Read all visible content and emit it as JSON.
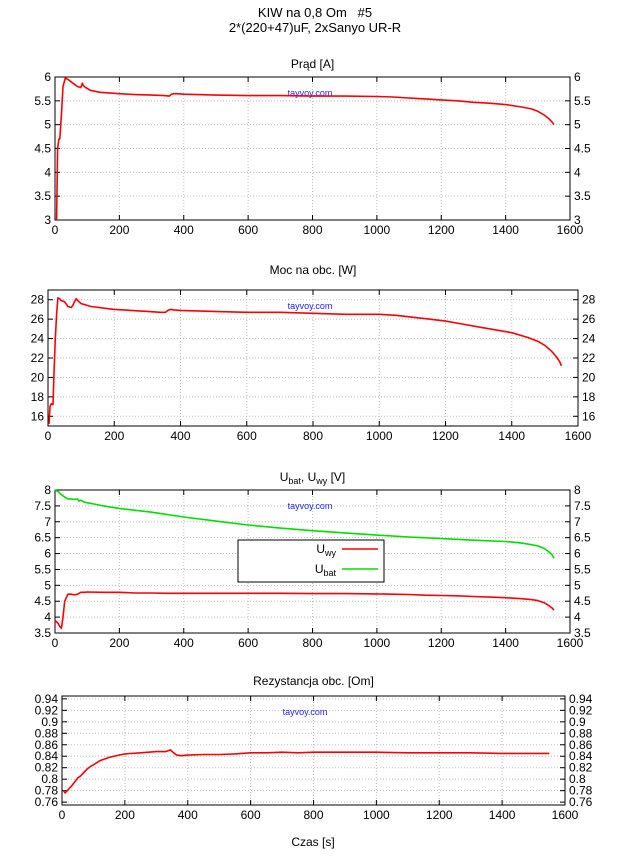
{
  "title": {
    "line1": "KIW na 0,8 Om   #5",
    "line2": "2*(220+47)uF, 2xSanyo UR-R"
  },
  "watermark": "tayvoy.com",
  "xlabel": "Czas [s]",
  "colors": {
    "red": "#ff0000",
    "green": "#00e000",
    "grid": "#bdbdbd"
  },
  "chart_data": [
    {
      "type": "line",
      "title": "Prąd [A]",
      "xlim": [
        0,
        1600
      ],
      "ylim": [
        3,
        6
      ],
      "xticks": [
        "0",
        "200",
        "400",
        "600",
        "800",
        "1000",
        "1200",
        "1400",
        "1600"
      ],
      "yticks": [
        "3",
        "3.5",
        "4",
        "4.5",
        "5",
        "5.5",
        "6"
      ],
      "series": [
        {
          "name": "Prąd",
          "color": "#ff0000",
          "x": [
            5,
            8,
            12,
            15,
            20,
            25,
            32,
            40,
            50,
            60,
            70,
            80,
            85,
            88,
            95,
            110,
            140,
            200,
            250,
            300,
            340,
            355,
            362,
            370,
            380,
            400,
            500,
            600,
            700,
            800,
            900,
            1000,
            1050,
            1100,
            1150,
            1200,
            1250,
            1300,
            1350,
            1400,
            1450,
            1480,
            1500,
            1520,
            1535,
            1545,
            1550
          ],
          "y": [
            3.0,
            4.5,
            4.7,
            4.7,
            5.2,
            5.8,
            5.98,
            5.95,
            5.9,
            5.85,
            5.8,
            5.78,
            5.87,
            5.82,
            5.78,
            5.72,
            5.68,
            5.65,
            5.63,
            5.62,
            5.61,
            5.6,
            5.64,
            5.65,
            5.65,
            5.64,
            5.62,
            5.61,
            5.61,
            5.6,
            5.6,
            5.59,
            5.58,
            5.56,
            5.54,
            5.52,
            5.5,
            5.47,
            5.45,
            5.42,
            5.37,
            5.33,
            5.28,
            5.2,
            5.12,
            5.05,
            5.0
          ]
        }
      ]
    },
    {
      "type": "line",
      "title": "Moc na obc. [W]",
      "xlim": [
        0,
        1600
      ],
      "ylim": [
        15,
        29
      ],
      "xticks": [
        "0",
        "200",
        "400",
        "600",
        "800",
        "1000",
        "1200",
        "1400",
        "1600"
      ],
      "yticks": [
        "16",
        "18",
        "20",
        "22",
        "24",
        "26",
        "28"
      ],
      "series": [
        {
          "name": "Moc",
          "color": "#ff0000",
          "x": [
            3,
            6,
            10,
            15,
            18,
            22,
            26,
            30,
            35,
            40,
            50,
            60,
            70,
            75,
            80,
            85,
            90,
            100,
            130,
            200,
            250,
            300,
            340,
            355,
            362,
            370,
            380,
            400,
            500,
            600,
            700,
            800,
            900,
            1000,
            1050,
            1100,
            1150,
            1200,
            1250,
            1300,
            1350,
            1400,
            1450,
            1480,
            1500,
            1520,
            1535,
            1545,
            1550
          ],
          "y": [
            15.2,
            17.0,
            17.3,
            17.2,
            20.5,
            24.0,
            26.5,
            28.2,
            28.1,
            27.9,
            27.8,
            27.3,
            27.2,
            27.4,
            27.8,
            28.1,
            27.9,
            27.6,
            27.3,
            27.0,
            26.9,
            26.8,
            26.7,
            26.7,
            26.9,
            27.0,
            26.95,
            26.9,
            26.8,
            26.7,
            26.7,
            26.6,
            26.5,
            26.5,
            26.4,
            26.2,
            26.0,
            25.8,
            25.5,
            25.2,
            24.9,
            24.6,
            24.1,
            23.7,
            23.3,
            22.7,
            22.1,
            21.6,
            21.2
          ]
        }
      ]
    },
    {
      "type": "line",
      "title_main": "U",
      "title_sub1": "bat",
      "title_sep": ", U",
      "title_sub2": "wy",
      "title_tail": " [V]",
      "xlim": [
        0,
        1600
      ],
      "ylim": [
        3.5,
        8
      ],
      "xticks": [
        "0",
        "200",
        "400",
        "600",
        "800",
        "1000",
        "1200",
        "1400",
        "1600"
      ],
      "yticks": [
        "3.5",
        "4",
        "4.5",
        "5",
        "5.5",
        "6",
        "6.5",
        "7",
        "7.5",
        "8"
      ],
      "legend": [
        {
          "main": "U",
          "sub": "wy",
          "color": "#ff0000"
        },
        {
          "main": "U",
          "sub": "bat",
          "color": "#00e000"
        }
      ],
      "series": [
        {
          "name": "Uwy",
          "color": "#ff0000",
          "x": [
            0,
            5,
            10,
            15,
            20,
            25,
            30,
            40,
            50,
            60,
            70,
            80,
            90,
            100,
            150,
            200,
            250,
            300,
            350,
            400,
            500,
            600,
            700,
            800,
            900,
            1000,
            1050,
            1100,
            1150,
            1200,
            1250,
            1300,
            1350,
            1400,
            1450,
            1480,
            1500,
            1520,
            1535,
            1545,
            1550
          ],
          "y": [
            3.9,
            3.85,
            3.8,
            3.7,
            3.65,
            4.0,
            4.5,
            4.72,
            4.72,
            4.7,
            4.72,
            4.78,
            4.78,
            4.79,
            4.78,
            4.78,
            4.76,
            4.76,
            4.75,
            4.75,
            4.75,
            4.75,
            4.75,
            4.74,
            4.74,
            4.73,
            4.72,
            4.71,
            4.69,
            4.68,
            4.67,
            4.65,
            4.63,
            4.61,
            4.58,
            4.55,
            4.52,
            4.45,
            4.36,
            4.28,
            4.22
          ]
        },
        {
          "name": "Ubat",
          "color": "#00e000",
          "x": [
            0,
            10,
            20,
            30,
            40,
            50,
            60,
            70,
            75,
            80,
            85,
            90,
            100,
            150,
            200,
            300,
            400,
            500,
            600,
            700,
            800,
            900,
            1000,
            1100,
            1200,
            1300,
            1400,
            1450,
            1480,
            1500,
            1520,
            1535,
            1545,
            1550
          ],
          "y": [
            8.0,
            7.95,
            7.85,
            7.78,
            7.72,
            7.72,
            7.7,
            7.72,
            7.65,
            7.68,
            7.65,
            7.62,
            7.6,
            7.5,
            7.42,
            7.3,
            7.15,
            7.02,
            6.9,
            6.8,
            6.72,
            6.65,
            6.58,
            6.52,
            6.47,
            6.42,
            6.38,
            6.33,
            6.28,
            6.24,
            6.16,
            6.05,
            5.95,
            5.85
          ]
        }
      ]
    },
    {
      "type": "line",
      "title": "Rezystancja obc. [Om]",
      "xlim": [
        0,
        1600
      ],
      "ylim": [
        0.755,
        0.945
      ],
      "xticks": [
        "0",
        "200",
        "400",
        "600",
        "800",
        "1000",
        "1200",
        "1400",
        "1600"
      ],
      "yticks": [
        "0.76",
        "0.78",
        "0.8",
        "0.82",
        "0.84",
        "0.86",
        "0.88",
        "0.9",
        "0.92",
        "0.94"
      ],
      "series": [
        {
          "name": "R",
          "color": "#ff0000",
          "x": [
            5,
            10,
            20,
            30,
            40,
            50,
            60,
            70,
            80,
            90,
            100,
            120,
            150,
            180,
            200,
            250,
            300,
            330,
            345,
            355,
            365,
            380,
            400,
            450,
            500,
            550,
            600,
            650,
            700,
            750,
            800,
            900,
            1000,
            1100,
            1200,
            1300,
            1400,
            1500,
            1550
          ],
          "y": [
            0.78,
            0.776,
            0.782,
            0.788,
            0.795,
            0.802,
            0.806,
            0.812,
            0.818,
            0.822,
            0.825,
            0.832,
            0.838,
            0.842,
            0.844,
            0.846,
            0.848,
            0.848,
            0.851,
            0.846,
            0.842,
            0.841,
            0.842,
            0.843,
            0.843,
            0.844,
            0.846,
            0.846,
            0.847,
            0.846,
            0.847,
            0.847,
            0.847,
            0.846,
            0.846,
            0.846,
            0.845,
            0.845,
            0.845
          ]
        }
      ]
    }
  ]
}
